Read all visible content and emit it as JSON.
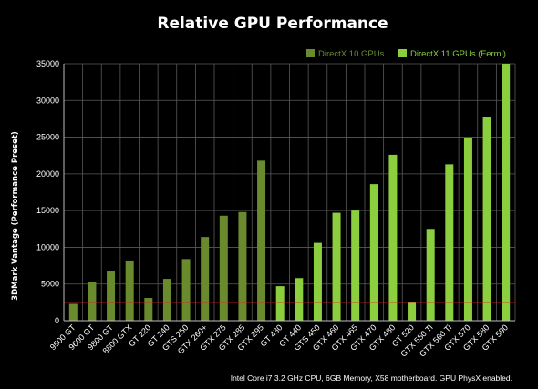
{
  "chart_data": {
    "type": "bar",
    "title": "Relative GPU Performance",
    "ylabel": "3DMark Vantage (Performance Preset)",
    "xlabel": "",
    "ylim": [
      0,
      35000
    ],
    "yticks": [
      0,
      5000,
      10000,
      15000,
      20000,
      25000,
      30000,
      35000
    ],
    "grid": true,
    "legend_placement": "top-right",
    "categories": [
      "9500 GT",
      "9600 GT",
      "9800 GT",
      "8800 GTX",
      "GT 220",
      "GT 240",
      "GTS 250",
      "GTX 260+",
      "GTX 275",
      "GTX 285",
      "GTX 295",
      "GT 430",
      "GT 440",
      "GTS 450",
      "GTX 460",
      "GTX 465",
      "GTX 470",
      "GTX 480",
      "GT 520",
      "GTX 550 Ti",
      "GTX 560 Ti",
      "GTX 570",
      "GTX 580",
      "GTX 590"
    ],
    "series": [
      {
        "name": "DirectX 10 GPUs",
        "color": "#6a8a2e",
        "values": [
          2300,
          5300,
          6700,
          8200,
          3100,
          5700,
          8400,
          11400,
          14300,
          14800,
          21800,
          null,
          null,
          null,
          null,
          null,
          null,
          null,
          null,
          null,
          null,
          null,
          null,
          null
        ]
      },
      {
        "name": "DirectX 11 GPUs (Fermi)",
        "color": "#8ccf3e",
        "values": [
          null,
          null,
          null,
          null,
          null,
          null,
          null,
          null,
          null,
          null,
          null,
          4700,
          5800,
          10600,
          14700,
          15000,
          18600,
          22600,
          2500,
          12500,
          21300,
          24900,
          27800,
          35000
        ]
      }
    ],
    "reference_line": {
      "value": 2500,
      "color": "#d42020"
    },
    "footnote": "Intel Core i7 3.2 GHz CPU, 6GB Memory, X58 motherboard. GPU PhysX enabled."
  }
}
